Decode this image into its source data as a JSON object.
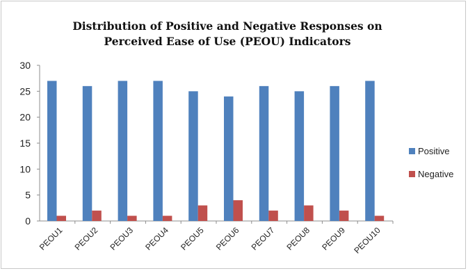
{
  "chart_data": {
    "type": "bar",
    "title_line1": "Distribution  of Positive and Negative Responses on",
    "title_line2": "Perceived Ease of Use (PEOU) Indicators",
    "xlabel": "",
    "ylabel": "",
    "categories": [
      "PEOU1",
      "PEOU2",
      "PEOU3",
      "PEOU4",
      "PEOU5",
      "PEOU6",
      "PEOU7",
      "PEOU8",
      "PEOU9",
      "PEOU10"
    ],
    "series": [
      {
        "name": "Positive",
        "color": "#4f81bd",
        "values": [
          27,
          26,
          27,
          27,
          25,
          24,
          26,
          25,
          26,
          27
        ]
      },
      {
        "name": "Negative",
        "color": "#c0504d",
        "values": [
          1,
          2,
          1,
          1,
          3,
          4,
          2,
          3,
          2,
          1
        ]
      }
    ],
    "ylim": [
      0,
      30
    ],
    "yticks": [
      0,
      5,
      10,
      15,
      20,
      25,
      30
    ],
    "grid": false,
    "legend": "right"
  }
}
